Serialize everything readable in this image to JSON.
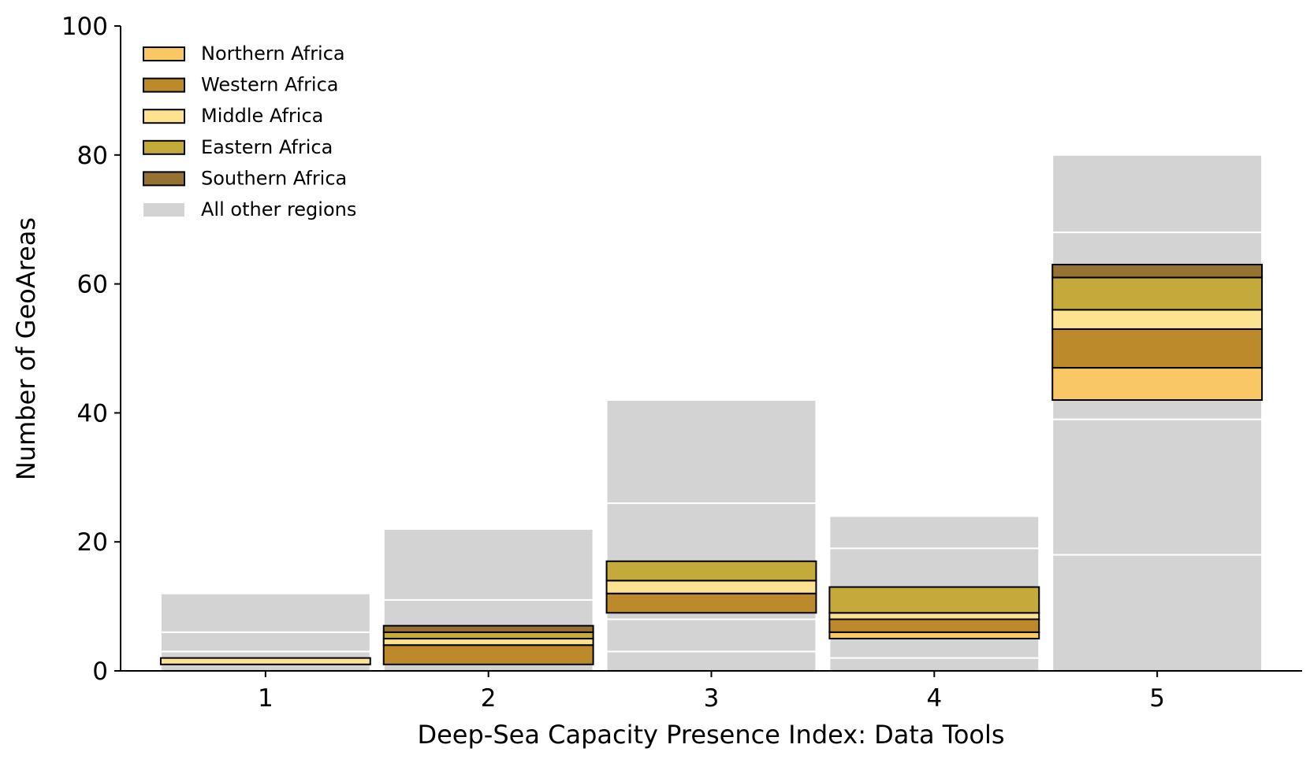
{
  "chart_data": {
    "type": "bar",
    "stacked": true,
    "xlabel": "Deep-Sea Capacity Presence Index: Data Tools",
    "ylabel": "Number of GeoAreas",
    "categories": [
      "1",
      "2",
      "3",
      "4",
      "5"
    ],
    "ylim": [
      0,
      100
    ],
    "yticks": [
      "0",
      "20",
      "40",
      "60",
      "80",
      "100"
    ],
    "legend_position": "top-left",
    "grid": false,
    "background_series": {
      "name": "All other regions",
      "color": "#d3d3d3",
      "segments": [
        [
          [
            0,
            3
          ],
          [
            3,
            6
          ],
          [
            6,
            12
          ]
        ],
        [
          [
            0,
            1
          ],
          [
            1,
            11
          ],
          [
            11,
            22
          ]
        ],
        [
          [
            0,
            3
          ],
          [
            3,
            8
          ],
          [
            8,
            9
          ],
          [
            9,
            26
          ],
          [
            26,
            42
          ]
        ],
        [
          [
            0,
            2
          ],
          [
            2,
            5
          ],
          [
            5,
            19
          ],
          [
            19,
            24
          ]
        ],
        [
          [
            0,
            18
          ],
          [
            18,
            39
          ],
          [
            39,
            42
          ],
          [
            42,
            63
          ],
          [
            63,
            68
          ],
          [
            68,
            80
          ]
        ]
      ]
    },
    "series": [
      {
        "name": "Northern Africa",
        "color": "#f9c764",
        "values": [
          0,
          0,
          0,
          1,
          5
        ]
      },
      {
        "name": "Western Africa",
        "color": "#bc8a2a",
        "values": [
          0,
          3,
          3,
          2,
          6
        ]
      },
      {
        "name": "Middle Africa",
        "color": "#fde291",
        "values": [
          1,
          1,
          2,
          1,
          3
        ]
      },
      {
        "name": "Eastern Africa",
        "color": "#c4a93b",
        "values": [
          0,
          1,
          3,
          4,
          5
        ]
      },
      {
        "name": "Southern Africa",
        "color": "#957231",
        "values": [
          0,
          1,
          0,
          0,
          2
        ]
      }
    ],
    "africa_base": [
      1,
      1,
      9,
      5,
      42
    ]
  }
}
